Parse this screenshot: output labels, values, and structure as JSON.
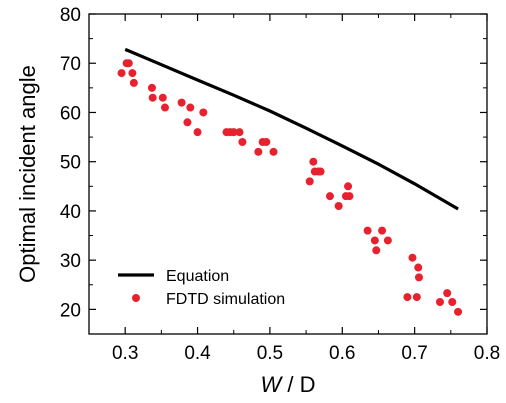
{
  "chart_data": {
    "type": "scatter",
    "xlabel_italic": "W",
    "xlabel_rest": " / D",
    "ylabel": "Optimal incident angle",
    "xlim": [
      0.25,
      0.8
    ],
    "ylim": [
      15,
      80
    ],
    "x_ticks": [
      "0.3",
      "0.4",
      "0.5",
      "0.6",
      "0.7",
      "0.8"
    ],
    "y_ticks": [
      "20",
      "30",
      "40",
      "50",
      "60",
      "70",
      "80"
    ],
    "grid": false,
    "legend_position": "bottom-left",
    "series": [
      {
        "name": "Equation",
        "kind": "line",
        "color": "#000000",
        "points": [
          [
            0.3,
            72.8
          ],
          [
            0.35,
            69.7
          ],
          [
            0.4,
            66.6
          ],
          [
            0.45,
            63.5
          ],
          [
            0.5,
            60.3
          ],
          [
            0.55,
            56.8
          ],
          [
            0.6,
            53.2
          ],
          [
            0.65,
            49.5
          ],
          [
            0.7,
            45.5
          ],
          [
            0.76,
            40.4
          ]
        ]
      },
      {
        "name": "FDTD simulation",
        "kind": "scatter",
        "color": "#e8212e",
        "points": [
          [
            0.295,
            68
          ],
          [
            0.302,
            70
          ],
          [
            0.305,
            70
          ],
          [
            0.31,
            68
          ],
          [
            0.312,
            66
          ],
          [
            0.337,
            65
          ],
          [
            0.338,
            63
          ],
          [
            0.352,
            63
          ],
          [
            0.355,
            61
          ],
          [
            0.378,
            62
          ],
          [
            0.386,
            58
          ],
          [
            0.39,
            61
          ],
          [
            0.4,
            56
          ],
          [
            0.408,
            60
          ],
          [
            0.44,
            56
          ],
          [
            0.445,
            56
          ],
          [
            0.45,
            56
          ],
          [
            0.458,
            56
          ],
          [
            0.462,
            54
          ],
          [
            0.484,
            52
          ],
          [
            0.49,
            54
          ],
          [
            0.495,
            54
          ],
          [
            0.505,
            52
          ],
          [
            0.555,
            46
          ],
          [
            0.56,
            50
          ],
          [
            0.562,
            48
          ],
          [
            0.567,
            48
          ],
          [
            0.57,
            48
          ],
          [
            0.583,
            43
          ],
          [
            0.595,
            41
          ],
          [
            0.605,
            43
          ],
          [
            0.608,
            45
          ],
          [
            0.61,
            43
          ],
          [
            0.635,
            36
          ],
          [
            0.645,
            34
          ],
          [
            0.647,
            32
          ],
          [
            0.655,
            36
          ],
          [
            0.663,
            34
          ],
          [
            0.69,
            22.5
          ],
          [
            0.697,
            30.5
          ],
          [
            0.703,
            22.5
          ],
          [
            0.705,
            28.5
          ],
          [
            0.706,
            26.5
          ],
          [
            0.735,
            21.5
          ],
          [
            0.745,
            23.3
          ],
          [
            0.752,
            21.5
          ],
          [
            0.76,
            19.5
          ]
        ]
      }
    ]
  }
}
